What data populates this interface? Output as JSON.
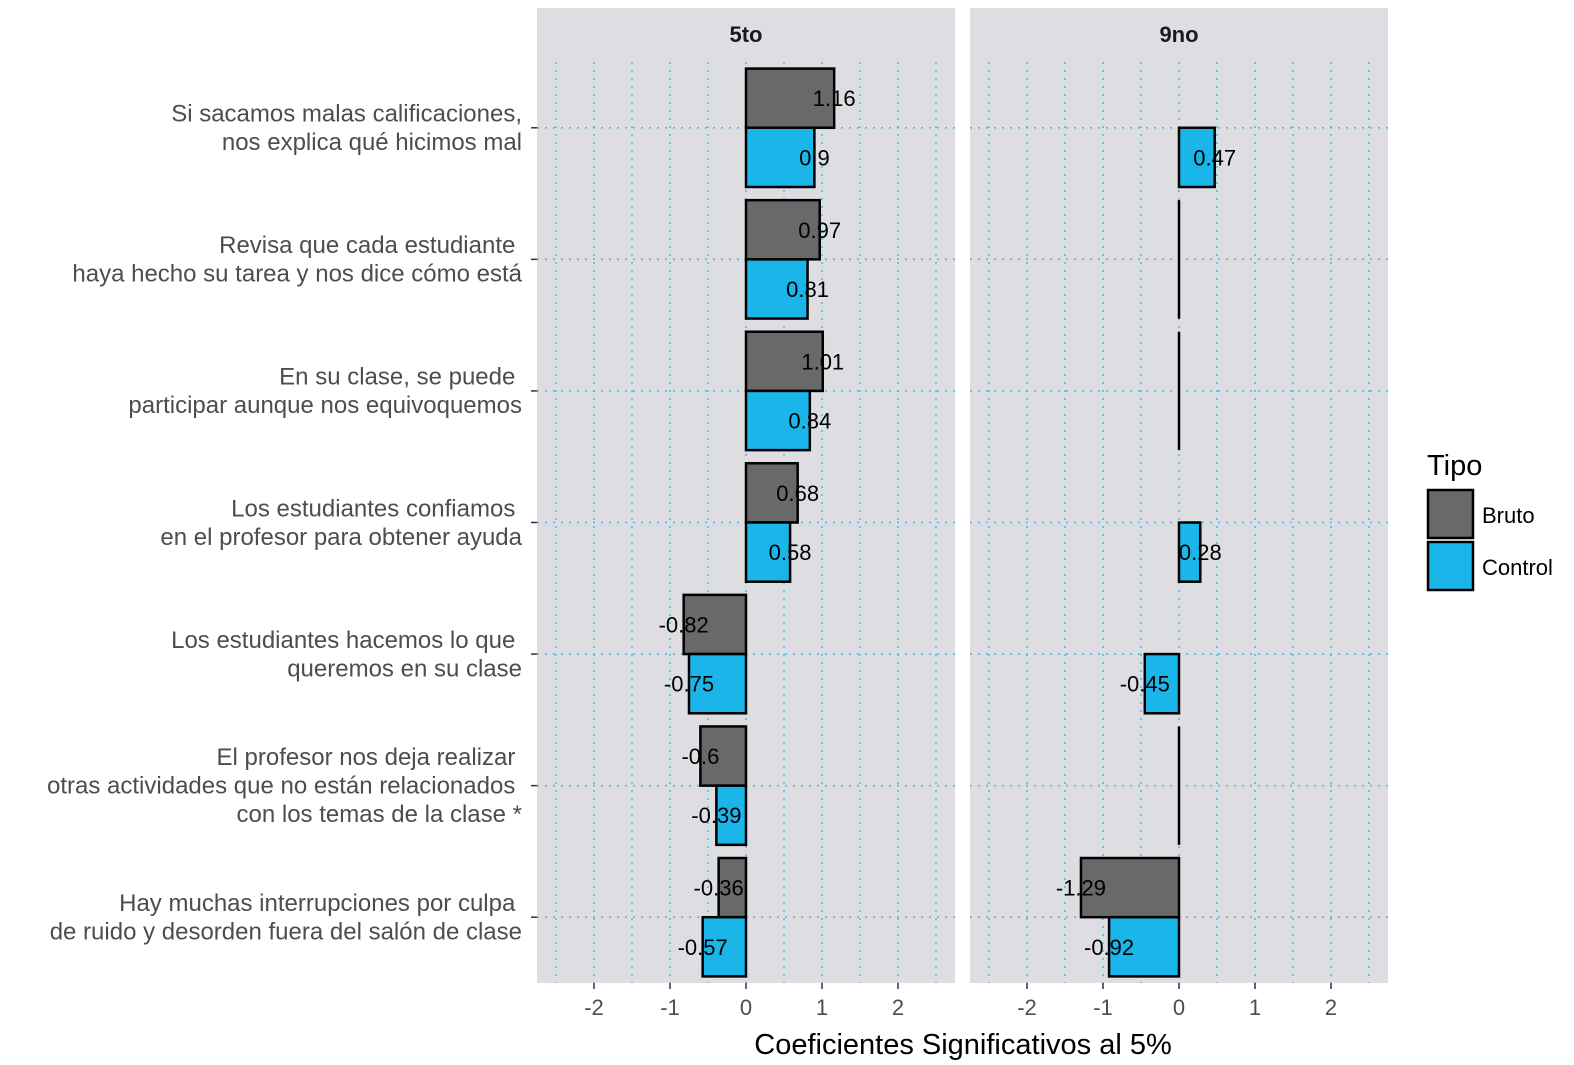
{
  "chart_data": {
    "type": "bar",
    "orientation": "horizontal",
    "xlabel": "Coeficientes Significativos al 5%",
    "xlim": [
      -2.75,
      2.75
    ],
    "xticks": [
      -2,
      -1,
      0,
      1,
      2
    ],
    "grid": true,
    "legend": {
      "title": "Tipo",
      "placement": "right"
    },
    "categories": [
      [
        "Si sacamos malas calificaciones,",
        "nos explica qué hicimos mal"
      ],
      [
        "Revisa que cada estudiante ",
        "haya hecho su tarea y nos dice cómo está"
      ],
      [
        "En su clase, se puede ",
        "participar aunque nos equivoquemos"
      ],
      [
        "Los estudiantes confiamos ",
        "en el profesor para obtener ayuda"
      ],
      [
        "Los estudiantes hacemos lo que ",
        "queremos en su clase"
      ],
      [
        "El profesor nos deja realizar ",
        "otras actividades que no están relacionados ",
        "con los temas de la clase *"
      ],
      [
        "Hay muchas interrupciones por culpa ",
        "de ruido y desorden fuera del salón de clase"
      ]
    ],
    "series": [
      {
        "name": "Bruto",
        "color": "#696969"
      },
      {
        "name": "Control",
        "color": "#1ab6ea"
      }
    ],
    "panels": [
      {
        "title": "5to",
        "values": {
          "Bruto": [
            1.16,
            0.97,
            1.01,
            0.68,
            -0.82,
            -0.6,
            -0.36
          ],
          "Control": [
            0.9,
            0.81,
            0.84,
            0.58,
            -0.75,
            -0.39,
            -0.57
          ]
        },
        "labels": {
          "Bruto": [
            "1.16",
            "0.97",
            "1.01",
            "0.68",
            "-0.82",
            "-0.6",
            "-0.36"
          ],
          "Control": [
            "0.9",
            "0.81",
            "0.84",
            "0.58",
            "-0.75",
            "-0.39",
            "-0.57"
          ]
        }
      },
      {
        "title": "9no",
        "values": {
          "Bruto": [
            0,
            0,
            0,
            0,
            0,
            0,
            -1.29
          ],
          "Control": [
            0.47,
            0,
            0,
            0.28,
            -0.45,
            0,
            -0.92
          ]
        },
        "labels": {
          "Bruto": [
            null,
            null,
            null,
            null,
            null,
            null,
            "-1.29"
          ],
          "Control": [
            "0.47",
            null,
            null,
            "0.28",
            "-0.45",
            null,
            "-0.92"
          ]
        }
      }
    ],
    "panel_background": "#dedde2",
    "grid_color": "#31b8ec"
  }
}
